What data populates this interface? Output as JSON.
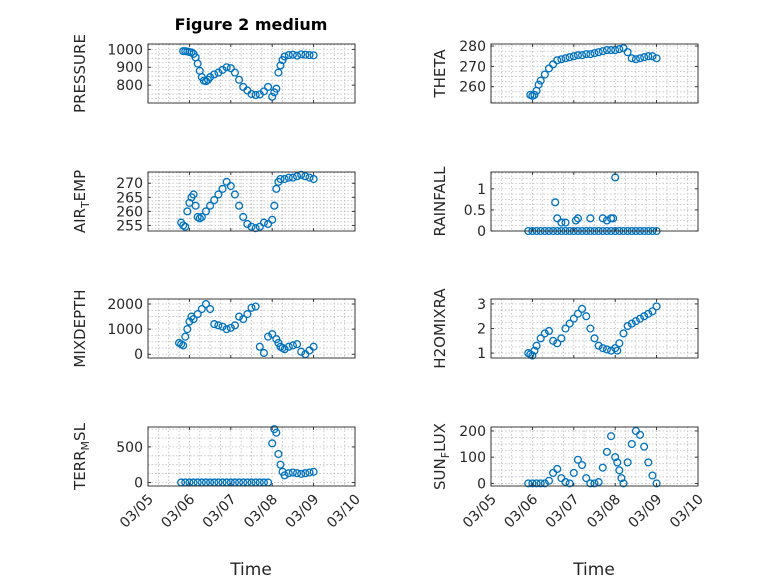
{
  "figure": {
    "title": "Figure 2 medium"
  },
  "colors": {
    "marker": "#0072bd",
    "axis": "#262626",
    "grid": "#bdbdbd"
  },
  "chart_data": [
    {
      "type": "scatter",
      "ylabel": "PRESSURE",
      "ylim": [
        700,
        1030
      ],
      "yticks": [
        800,
        900,
        1000
      ],
      "ytick_labels": [
        "800",
        "900",
        "1000"
      ],
      "xlim": [
        0,
        5
      ],
      "xticks": [
        0,
        1,
        2,
        3,
        4,
        5
      ],
      "x": [
        0.85,
        0.9,
        0.95,
        1.0,
        1.05,
        1.1,
        1.15,
        1.2,
        1.25,
        1.3,
        1.35,
        1.4,
        1.45,
        1.5,
        1.6,
        1.7,
        1.8,
        1.9,
        2.0,
        2.1,
        2.2,
        2.3,
        2.4,
        2.5,
        2.6,
        2.7,
        2.8,
        2.9,
        3.0,
        3.05,
        3.1,
        3.15,
        3.2,
        3.25,
        3.3,
        3.4,
        3.5,
        3.6,
        3.7,
        3.8,
        3.9,
        4.0
      ],
      "y": [
        990,
        990,
        988,
        985,
        983,
        975,
        955,
        920,
        880,
        845,
        825,
        822,
        830,
        845,
        860,
        870,
        885,
        900,
        895,
        870,
        830,
        790,
        770,
        750,
        745,
        748,
        765,
        790,
        735,
        760,
        780,
        870,
        910,
        940,
        960,
        968,
        970,
        965,
        972,
        970,
        968,
        967
      ]
    },
    {
      "type": "scatter",
      "ylabel": "THETA",
      "ylim": [
        252,
        281
      ],
      "yticks": [
        260,
        270,
        280
      ],
      "ytick_labels": [
        "260",
        "270",
        "280"
      ],
      "xlim": [
        0,
        5
      ],
      "xticks": [
        0,
        1,
        2,
        3,
        4,
        5
      ],
      "x": [
        0.95,
        1.0,
        1.05,
        1.1,
        1.15,
        1.2,
        1.3,
        1.4,
        1.5,
        1.6,
        1.7,
        1.8,
        1.9,
        2.0,
        2.1,
        2.2,
        2.3,
        2.4,
        2.5,
        2.6,
        2.7,
        2.8,
        2.9,
        3.0,
        3.1,
        3.2,
        3.3,
        3.4,
        3.5,
        3.6,
        3.7,
        3.8,
        3.9,
        4.0
      ],
      "y": [
        256,
        255.5,
        256,
        258,
        261,
        263,
        266,
        269,
        271,
        273,
        273.5,
        274,
        274.5,
        275,
        275.5,
        275.5,
        276,
        276,
        276.5,
        277,
        277.5,
        278,
        278,
        278,
        278.5,
        279,
        277,
        274,
        273.5,
        274,
        274.5,
        275,
        275,
        274
      ]
    },
    {
      "type": "scatter",
      "ylabel": "AIR_TEMP",
      "ylim": [
        253,
        274
      ],
      "yticks": [
        255,
        260,
        265,
        270
      ],
      "ytick_labels": [
        "255",
        "260",
        "265",
        "270"
      ],
      "xlim": [
        0,
        5
      ],
      "xticks": [
        0,
        1,
        2,
        3,
        4,
        5
      ],
      "x": [
        0.8,
        0.85,
        0.9,
        0.95,
        1.0,
        1.05,
        1.1,
        1.15,
        1.2,
        1.25,
        1.3,
        1.4,
        1.5,
        1.6,
        1.7,
        1.8,
        1.9,
        2.0,
        2.1,
        2.2,
        2.3,
        2.4,
        2.5,
        2.6,
        2.7,
        2.8,
        2.9,
        3.0,
        3.05,
        3.1,
        3.15,
        3.2,
        3.3,
        3.4,
        3.5,
        3.6,
        3.7,
        3.8,
        3.9,
        4.0
      ],
      "y": [
        256,
        255,
        254.5,
        260,
        263,
        265,
        266,
        262,
        258,
        257.5,
        258,
        260,
        262,
        264,
        266,
        268,
        270.5,
        269,
        266,
        262,
        258,
        255.5,
        254.5,
        254,
        254.5,
        256,
        255.5,
        257,
        262,
        268,
        270.5,
        271.5,
        271.5,
        272,
        272,
        272.5,
        273,
        272.5,
        272,
        271.5
      ]
    },
    {
      "type": "scatter",
      "ylabel": "RAINFALL",
      "ylim": [
        0,
        1.4
      ],
      "yticks": [
        0,
        0.5,
        1
      ],
      "ytick_labels": [
        "0",
        "0.5",
        "1"
      ],
      "xlim": [
        0,
        5
      ],
      "xticks": [
        0,
        1,
        2,
        3,
        4,
        5
      ],
      "x": [
        0.9,
        1.0,
        1.1,
        1.2,
        1.3,
        1.4,
        1.5,
        1.6,
        1.7,
        1.8,
        1.9,
        2.0,
        2.1,
        2.2,
        2.3,
        2.4,
        2.5,
        2.6,
        2.7,
        2.8,
        2.9,
        3.0,
        3.1,
        3.2,
        3.3,
        3.4,
        3.5,
        3.6,
        3.7,
        3.8,
        3.9,
        4.0,
        1.55,
        1.6,
        1.7,
        1.8,
        2.05,
        2.1,
        2.4,
        2.7,
        2.8,
        2.9,
        2.95,
        3.0
      ],
      "y": [
        0,
        0,
        0,
        0,
        0,
        0,
        0,
        0,
        0,
        0,
        0,
        0,
        0,
        0,
        0,
        0,
        0,
        0,
        0,
        0,
        0,
        0,
        0,
        0,
        0,
        0,
        0,
        0,
        0,
        0,
        0,
        0,
        0.68,
        0.3,
        0.2,
        0.2,
        0.25,
        0.3,
        0.3,
        0.3,
        0.25,
        0.3,
        0.3,
        1.27
      ]
    },
    {
      "type": "scatter",
      "ylabel": "MIXDEPTH",
      "ylim": [
        -150,
        2200
      ],
      "yticks": [
        0,
        1000,
        2000
      ],
      "ytick_labels": [
        "0",
        "1000",
        "2000"
      ],
      "xlim": [
        0,
        5
      ],
      "xticks": [
        0,
        1,
        2,
        3,
        4,
        5
      ],
      "x": [
        0.75,
        0.8,
        0.85,
        0.9,
        0.95,
        1.0,
        1.05,
        1.1,
        1.2,
        1.3,
        1.4,
        1.5,
        1.6,
        1.7,
        1.8,
        1.9,
        2.0,
        2.1,
        2.2,
        2.3,
        2.4,
        2.5,
        2.6,
        2.7,
        2.8,
        2.9,
        3.0,
        3.1,
        3.15,
        3.2,
        3.25,
        3.3,
        3.4,
        3.5,
        3.6,
        3.7,
        3.8,
        3.9,
        4.0
      ],
      "y": [
        450,
        400,
        350,
        700,
        1000,
        1300,
        1500,
        1400,
        1600,
        1800,
        2000,
        1800,
        1200,
        1150,
        1100,
        1000,
        1050,
        1150,
        1500,
        1400,
        1600,
        1850,
        1900,
        300,
        50,
        700,
        800,
        600,
        450,
        300,
        250,
        200,
        300,
        350,
        400,
        100,
        0,
        150,
        300
      ]
    },
    {
      "type": "scatter",
      "ylabel": "H2OMIXRA",
      "ylim": [
        0.8,
        3.2
      ],
      "yticks": [
        1,
        2,
        3
      ],
      "ytick_labels": [
        "1",
        "2",
        "3"
      ],
      "xlim": [
        0,
        5
      ],
      "xticks": [
        0,
        1,
        2,
        3,
        4,
        5
      ],
      "x": [
        0.9,
        0.95,
        1.0,
        1.05,
        1.1,
        1.2,
        1.3,
        1.4,
        1.5,
        1.6,
        1.7,
        1.8,
        1.9,
        2.0,
        2.1,
        2.2,
        2.3,
        2.4,
        2.5,
        2.6,
        2.7,
        2.8,
        2.9,
        3.0,
        3.05,
        3.1,
        3.2,
        3.3,
        3.4,
        3.5,
        3.6,
        3.7,
        3.8,
        3.9,
        4.0
      ],
      "y": [
        1.0,
        0.95,
        0.9,
        1.1,
        1.3,
        1.6,
        1.8,
        1.9,
        1.5,
        1.4,
        1.6,
        2.0,
        2.2,
        2.4,
        2.6,
        2.8,
        2.5,
        2.0,
        1.6,
        1.3,
        1.2,
        1.15,
        1.1,
        1.2,
        1.1,
        1.4,
        1.8,
        2.1,
        2.2,
        2.3,
        2.4,
        2.5,
        2.6,
        2.7,
        2.9
      ]
    },
    {
      "type": "scatter",
      "ylabel": "TERR_MSL",
      "ylim": [
        -50,
        780
      ],
      "yticks": [
        0,
        500
      ],
      "ytick_labels": [
        "0",
        "500"
      ],
      "xlim": [
        0,
        5
      ],
      "xticks": [
        0,
        1,
        2,
        3,
        4,
        5
      ],
      "x": [
        0.8,
        0.9,
        1.0,
        1.1,
        1.2,
        1.3,
        1.4,
        1.5,
        1.6,
        1.7,
        1.8,
        1.9,
        2.0,
        2.1,
        2.2,
        2.3,
        2.4,
        2.5,
        2.6,
        2.7,
        2.8,
        2.9,
        3.0,
        3.05,
        3.1,
        3.15,
        3.2,
        3.25,
        3.3,
        3.4,
        3.5,
        3.6,
        3.7,
        3.8,
        3.9,
        4.0
      ],
      "y": [
        0,
        0,
        0,
        0,
        0,
        0,
        0,
        0,
        0,
        0,
        0,
        0,
        0,
        0,
        0,
        0,
        0,
        0,
        0,
        0,
        0,
        0,
        550,
        750,
        700,
        400,
        250,
        150,
        100,
        130,
        140,
        130,
        120,
        130,
        140,
        150
      ]
    },
    {
      "type": "scatter",
      "ylabel": "SUN_FLUX",
      "ylim": [
        -10,
        215
      ],
      "yticks": [
        0,
        100,
        200
      ],
      "ytick_labels": [
        "0",
        "100",
        "200"
      ],
      "xlim": [
        0,
        5
      ],
      "xticks": [
        0,
        1,
        2,
        3,
        4,
        5
      ],
      "x": [
        0.9,
        1.0,
        1.1,
        1.2,
        1.3,
        1.4,
        1.5,
        1.6,
        1.7,
        1.8,
        1.9,
        2.0,
        2.1,
        2.2,
        2.3,
        2.4,
        2.5,
        2.6,
        2.7,
        2.8,
        2.9,
        3.0,
        3.05,
        3.1,
        3.15,
        3.2,
        3.3,
        3.4,
        3.5,
        3.6,
        3.7,
        3.8,
        3.9,
        4.0
      ],
      "y": [
        0,
        0,
        0,
        0,
        0,
        10,
        40,
        55,
        20,
        5,
        0,
        40,
        90,
        70,
        20,
        0,
        0,
        5,
        60,
        120,
        180,
        100,
        80,
        50,
        20,
        0,
        80,
        150,
        200,
        185,
        140,
        80,
        30,
        0
      ]
    }
  ],
  "x_tick_labels": [
    "03/05",
    "03/06",
    "03/07",
    "03/08",
    "03/09",
    "03/10"
  ],
  "xlabel": "Time"
}
